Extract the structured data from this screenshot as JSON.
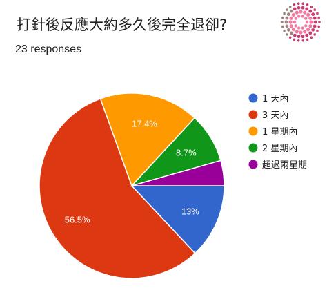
{
  "header": {
    "question": "打針後反應大約多久後完全退卻?",
    "responses": "23 responses"
  },
  "chart_data": {
    "type": "pie",
    "categories": [
      "1 天內",
      "3 天內",
      "1 星期內",
      "2 星期內",
      "超過兩星期"
    ],
    "values": [
      13.0,
      56.5,
      17.4,
      8.7,
      4.4
    ],
    "labels": [
      "13%",
      "56.5%",
      "17.4%",
      "8.7%",
      ""
    ],
    "colors": [
      "#3366cc",
      "#dc3912",
      "#ff9900",
      "#109618",
      "#990099"
    ],
    "legend_position": "right"
  },
  "logo": {
    "icon": "floral-ring-logo",
    "colors": [
      "#f06292",
      "#c2185b",
      "#8d6e63"
    ]
  }
}
